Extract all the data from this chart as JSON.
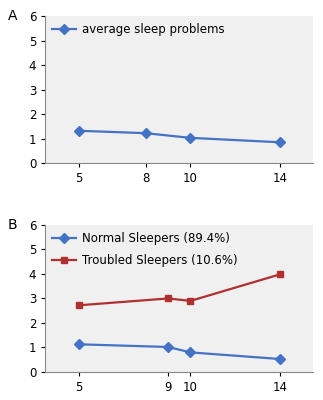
{
  "panel_A": {
    "label": "A",
    "x": [
      5,
      8,
      10,
      14
    ],
    "y": [
      1.32,
      1.22,
      1.03,
      0.85
    ],
    "color": "#4472C4",
    "marker": "D",
    "legend_label": "average sleep problems",
    "ylim": [
      0,
      6
    ],
    "yticks": [
      0,
      1,
      2,
      3,
      4,
      5,
      6
    ],
    "xticks": [
      5,
      8,
      10,
      14
    ]
  },
  "panel_B": {
    "label": "B",
    "normal": {
      "x": [
        5,
        9,
        10,
        14
      ],
      "y": [
        1.13,
        1.02,
        0.8,
        0.53
      ],
      "color": "#4472C4",
      "marker": "D",
      "legend_label": "Normal Sleepers (89.4%)"
    },
    "troubled": {
      "x": [
        5,
        9,
        10,
        14
      ],
      "y": [
        2.72,
        3.0,
        2.9,
        3.98
      ],
      "color": "#B03030",
      "marker": "s",
      "legend_label": "Troubled Sleepers (10.6%)"
    },
    "ylim": [
      0,
      6
    ],
    "yticks": [
      0,
      1,
      2,
      3,
      4,
      5,
      6
    ],
    "xticks": [
      5,
      9,
      10,
      14
    ]
  },
  "line_width": 1.6,
  "marker_size": 5,
  "font_size": 8.5,
  "label_font_size": 10,
  "bg_color": "#FFFFFF",
  "axes_bg": "#F0F0F0"
}
